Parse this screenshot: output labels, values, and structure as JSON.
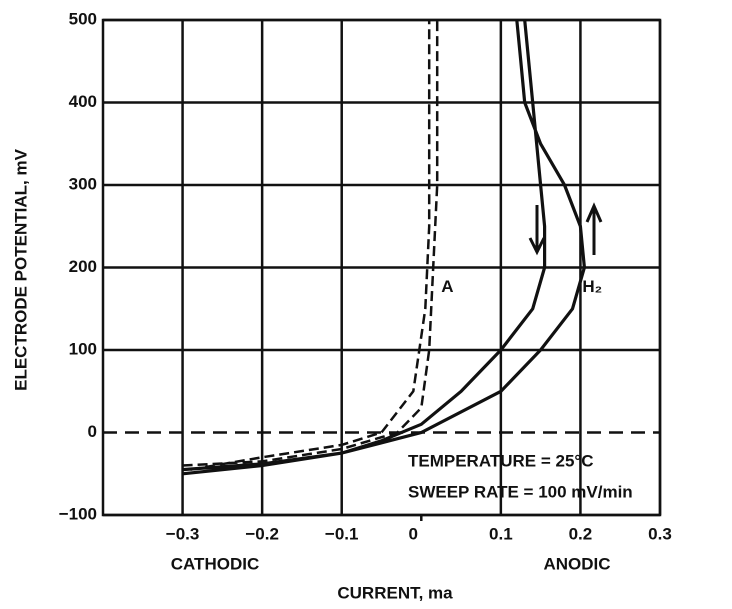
{
  "chart_data": {
    "type": "line",
    "xlabel": "CURRENT, ma",
    "ylabel": "ELECTRODE POTENTIAL, mV",
    "annotations": [
      "CATHODIC",
      "ANODIC",
      "TEMPERATURE = 25°C",
      "SWEEP RATE = 100 mV/min"
    ],
    "xlim": [
      -0.4,
      0.3
    ],
    "xticks": [
      {
        "value": -0.3,
        "label": "−0.3"
      },
      {
        "value": -0.2,
        "label": "−0.2"
      },
      {
        "value": -0.1,
        "label": "−0.1"
      },
      0,
      0.1,
      0.2,
      0.3
    ],
    "ylim": [
      -100,
      500
    ],
    "yticks": [
      {
        "value": -100,
        "label": "−100"
      },
      0,
      100,
      200,
      300,
      400,
      500
    ],
    "grid": true,
    "series": [
      {
        "name": "A",
        "color": "#111",
        "dashed": true,
        "x": [
          -0.3,
          -0.2,
          -0.1,
          -0.03,
          0,
          0.01,
          0.015,
          0.02,
          0.02,
          0.02,
          null,
          -0.29,
          -0.2,
          -0.1,
          -0.05,
          -0.01,
          0.005,
          0.01,
          0.01,
          0.01
        ],
        "values": [
          -40,
          -35,
          -20,
          0,
          30,
          100,
          200,
          300,
          400,
          500,
          null,
          -45,
          -30,
          -15,
          0,
          50,
          150,
          250,
          350,
          500
        ]
      },
      {
        "name": "H₂",
        "color": "#111",
        "dashed": false,
        "x": [
          -0.3,
          -0.2,
          -0.1,
          0,
          0.1,
          0.15,
          0.19,
          0.205,
          0.2,
          0.18,
          0.15,
          0.13,
          0.125,
          0.12,
          null,
          0.13,
          0.135,
          0.14,
          0.15,
          0.155,
          0.155,
          0.14,
          0.1,
          0.05,
          0,
          -0.05,
          -0.1,
          -0.2,
          -0.3
        ],
        "values": [
          -50,
          -40,
          -25,
          0,
          50,
          100,
          150,
          200,
          250,
          300,
          350,
          400,
          450,
          500,
          null,
          500,
          450,
          400,
          300,
          250,
          200,
          150,
          100,
          50,
          10,
          -10,
          -25,
          -38,
          -45
        ]
      }
    ]
  }
}
